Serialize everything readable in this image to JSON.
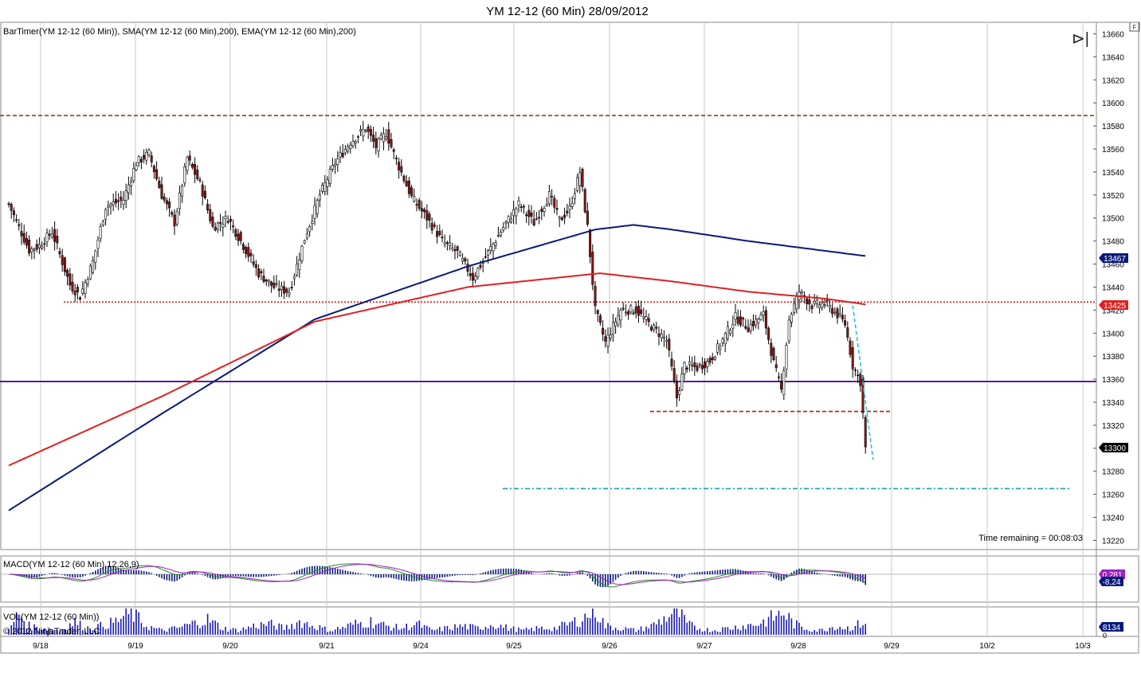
{
  "window": {
    "title": "YM 12-12 (60 Min)  28/09/2012",
    "flag_glyph": "F",
    "autoscroll_glyph": "⊳|"
  },
  "price_panel": {
    "indicator_label": "BarTimer(YM 12-12 (60 Min)), SMA(YM 12-12 (60 Min),200), EMA(YM 12-12 (60 Min),200)",
    "time_remaining": "Time remaining = 00:08:03",
    "sma_badge": "13467",
    "ema_badge": "13425",
    "last_badge": "13300"
  },
  "macd_panel": {
    "label": "MACD(YM 12-12 (60 Min),12,26,9)",
    "badge_1": "0,281",
    "badge_2": "-8,24"
  },
  "vol_panel": {
    "label": "VOL(YM 12-12 (60 Min))",
    "badge": "8134",
    "zero_label": "0",
    "copyright": "© 2012 NinjaTrader, LLC"
  },
  "colors": {
    "sma": "#0a1a7a",
    "ema": "#e02020",
    "up_candle": "#ffffff",
    "down_candle": "#8b1a1a",
    "volume": "#1a1ab0",
    "macd_line": "#2a8a2a",
    "signal_line": "#a020c0"
  },
  "chart_data": [
    {
      "type": "candlestick",
      "title": "YM 12-12 (60 Min)  28/09/2012",
      "x_ticks": [
        "9/18",
        "9/19",
        "9/20",
        "9/21",
        "9/24",
        "9/25",
        "9/26",
        "9/27",
        "9/28",
        "9/29",
        "10/2",
        "10/3"
      ],
      "y_ticks": [
        13220,
        13240,
        13260,
        13280,
        13300,
        13320,
        13340,
        13360,
        13380,
        13400,
        13420,
        13440,
        13460,
        13480,
        13500,
        13520,
        13540,
        13560,
        13580,
        13600,
        13620,
        13640,
        13660
      ],
      "ylim": [
        13212,
        13670
      ],
      "grid": true,
      "ohlc_anchor_closes": [
        [
          0,
          13512
        ],
        [
          8,
          13472
        ],
        [
          12,
          13476
        ],
        [
          17,
          13488
        ],
        [
          24,
          13442
        ],
        [
          28,
          13432
        ],
        [
          33,
          13462
        ],
        [
          38,
          13510
        ],
        [
          45,
          13516
        ],
        [
          50,
          13548
        ],
        [
          55,
          13556
        ],
        [
          60,
          13520
        ],
        [
          65,
          13496
        ],
        [
          70,
          13552
        ],
        [
          75,
          13530
        ],
        [
          80,
          13492
        ],
        [
          86,
          13500
        ],
        [
          92,
          13476
        ],
        [
          98,
          13452
        ],
        [
          104,
          13440
        ],
        [
          110,
          13436
        ],
        [
          116,
          13482
        ],
        [
          122,
          13520
        ],
        [
          128,
          13548
        ],
        [
          134,
          13566
        ],
        [
          140,
          13578
        ],
        [
          144,
          13562
        ],
        [
          148,
          13574
        ],
        [
          152,
          13550
        ],
        [
          158,
          13518
        ],
        [
          164,
          13500
        ],
        [
          170,
          13480
        ],
        [
          176,
          13470
        ],
        [
          182,
          13448
        ],
        [
          188,
          13470
        ],
        [
          194,
          13492
        ],
        [
          200,
          13512
        ],
        [
          206,
          13496
        ],
        [
          212,
          13520
        ],
        [
          216,
          13498
        ],
        [
          220,
          13508
        ],
        [
          224,
          13540
        ],
        [
          227,
          13492
        ],
        [
          230,
          13420
        ],
        [
          234,
          13392
        ],
        [
          240,
          13420
        ],
        [
          246,
          13420
        ],
        [
          252,
          13406
        ],
        [
          258,
          13394
        ],
        [
          262,
          13344
        ],
        [
          265,
          13372
        ],
        [
          270,
          13370
        ],
        [
          275,
          13376
        ],
        [
          280,
          13394
        ],
        [
          285,
          13414
        ],
        [
          290,
          13405
        ],
        [
          296,
          13416
        ],
        [
          300,
          13374
        ],
        [
          303,
          13350
        ],
        [
          306,
          13412
        ],
        [
          310,
          13436
        ],
        [
          315,
          13424
        ],
        [
          320,
          13426
        ],
        [
          325,
          13416
        ],
        [
          328,
          13408
        ],
        [
          331,
          13372
        ],
        [
          334,
          13358
        ],
        [
          335,
          13330
        ],
        [
          336,
          13300
        ]
      ],
      "volume_anchors": [
        [
          0,
          2
        ],
        [
          4,
          10
        ],
        [
          8,
          4
        ],
        [
          14,
          3
        ],
        [
          20,
          2
        ],
        [
          26,
          6
        ],
        [
          30,
          3
        ],
        [
          36,
          4
        ],
        [
          42,
          6
        ],
        [
          48,
          10
        ],
        [
          54,
          4
        ],
        [
          60,
          2
        ],
        [
          66,
          3
        ],
        [
          72,
          5
        ],
        [
          78,
          7
        ],
        [
          84,
          3
        ],
        [
          90,
          2
        ],
        [
          96,
          4
        ],
        [
          102,
          5
        ],
        [
          108,
          3
        ],
        [
          114,
          6
        ],
        [
          120,
          4
        ],
        [
          126,
          2
        ],
        [
          130,
          3
        ],
        [
          136,
          5
        ],
        [
          142,
          6
        ],
        [
          148,
          4
        ],
        [
          154,
          3
        ],
        [
          160,
          5
        ],
        [
          166,
          2
        ],
        [
          172,
          3
        ],
        [
          178,
          4
        ],
        [
          184,
          3
        ],
        [
          190,
          5
        ],
        [
          196,
          3
        ],
        [
          202,
          2
        ],
        [
          208,
          3
        ],
        [
          214,
          3
        ],
        [
          220,
          5
        ],
        [
          226,
          8
        ],
        [
          230,
          12
        ],
        [
          234,
          4
        ],
        [
          240,
          3
        ],
        [
          246,
          2
        ],
        [
          252,
          4
        ],
        [
          258,
          8
        ],
        [
          262,
          11
        ],
        [
          266,
          5
        ],
        [
          270,
          3
        ],
        [
          276,
          2
        ],
        [
          282,
          3
        ],
        [
          288,
          4
        ],
        [
          294,
          5
        ],
        [
          300,
          8
        ],
        [
          304,
          10
        ],
        [
          308,
          5
        ],
        [
          312,
          3
        ],
        [
          318,
          2
        ],
        [
          324,
          4
        ],
        [
          330,
          3
        ],
        [
          336,
          6
        ]
      ],
      "sma_200": [
        [
          0,
          13246
        ],
        [
          60,
          13330
        ],
        [
          120,
          13412
        ],
        [
          180,
          13458
        ],
        [
          230,
          13490
        ],
        [
          245,
          13494
        ],
        [
          260,
          13490
        ],
        [
          290,
          13480
        ],
        [
          336,
          13467
        ]
      ],
      "ema_200": [
        [
          0,
          13285
        ],
        [
          60,
          13345
        ],
        [
          120,
          13410
        ],
        [
          180,
          13440
        ],
        [
          232,
          13452
        ],
        [
          260,
          13445
        ],
        [
          290,
          13436
        ],
        [
          320,
          13430
        ],
        [
          336,
          13425
        ]
      ],
      "horizontal_lines": [
        {
          "value": 13589,
          "style": "dashed",
          "color": "#8b4513"
        },
        {
          "value": 13427,
          "style": "dotted",
          "color": "#e02020"
        },
        {
          "value": 13358,
          "style": "solid",
          "color": "#5a1a9a"
        },
        {
          "value": 13332,
          "style": "dashed",
          "color": "#b02020"
        },
        {
          "value": 13265,
          "style": "dashdot",
          "color": "#1aa0b0"
        }
      ],
      "trendline": {
        "from": [
          13424,
          331
        ],
        "to": [
          13290,
          339
        ],
        "style": "dashed",
        "color": "#30c0d0"
      }
    }
  ]
}
